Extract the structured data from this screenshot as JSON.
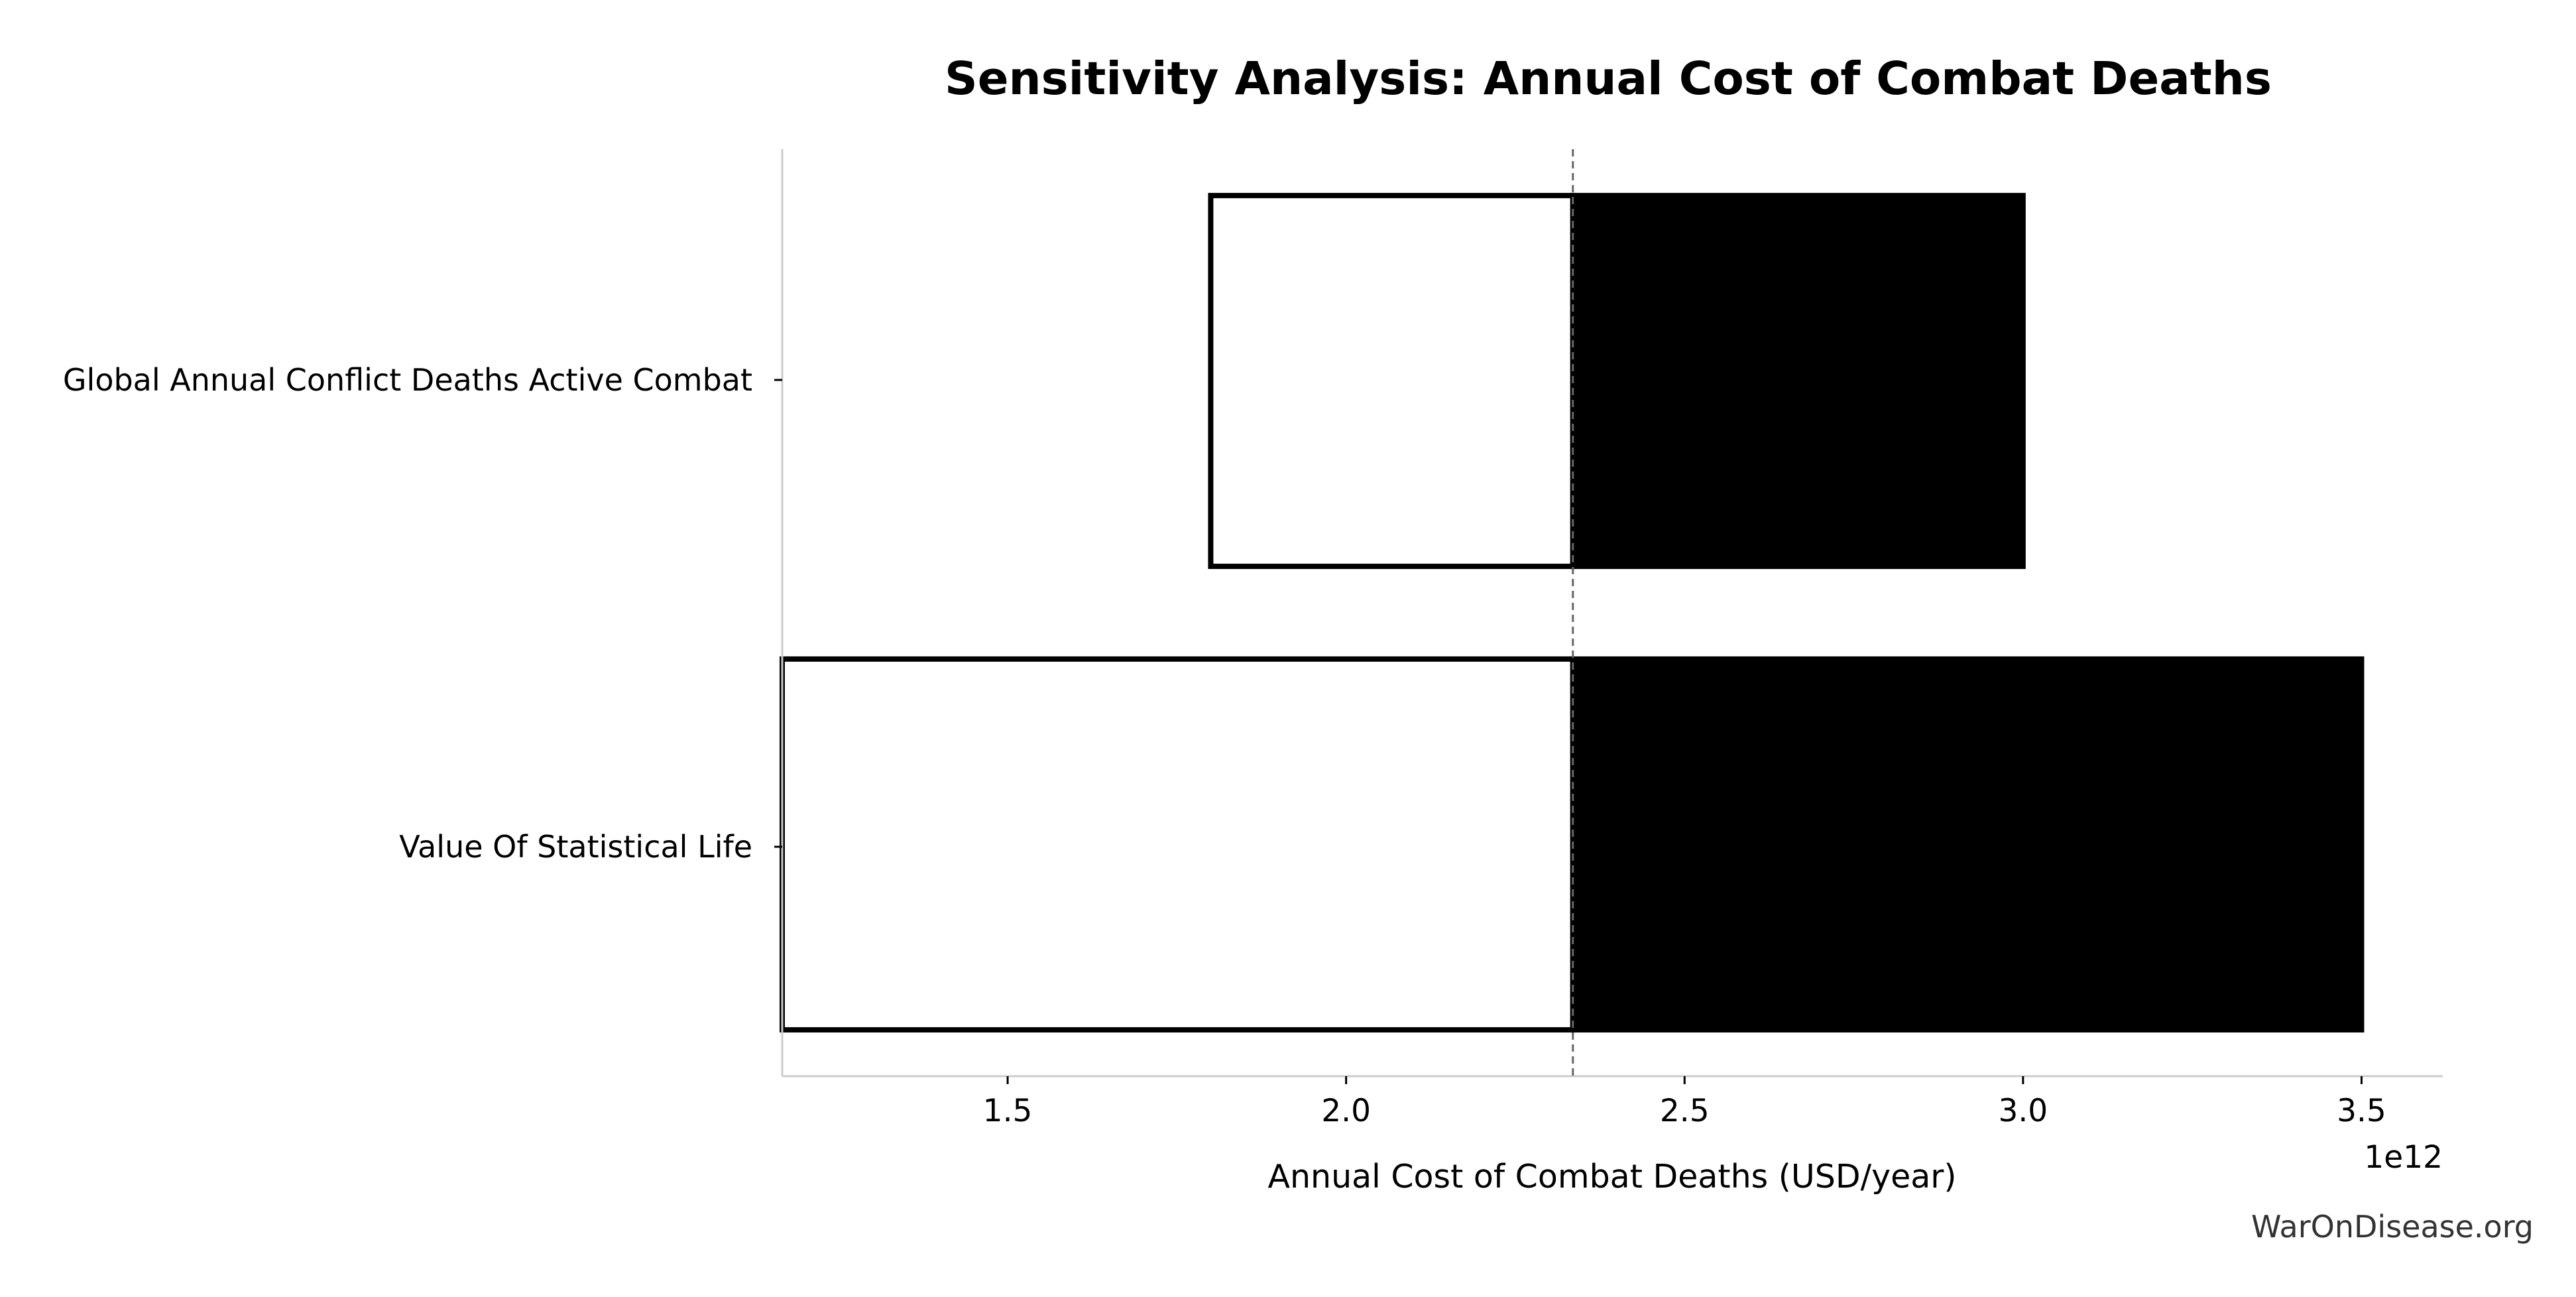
{
  "chart_data": {
    "type": "bar",
    "orientation": "horizontal",
    "title": "Sensitivity Analysis: Annual Cost of Combat Deaths",
    "xlabel": "Annual Cost of Combat Deaths (USD/year)",
    "x_offset_label": "1e12",
    "x_scale": 1000000000000.0,
    "xlim": [
      1.167,
      3.62
    ],
    "baseline": 2.335,
    "xticks": [
      {
        "value": 1.5,
        "label": "1.5"
      },
      {
        "value": 2.0,
        "label": "2.0"
      },
      {
        "value": 2.5,
        "label": "2.5"
      },
      {
        "value": 3.0,
        "label": "3.0"
      },
      {
        "value": 3.5,
        "label": "3.5"
      }
    ],
    "categories": [
      "Global Annual Conflict Deaths Active Combat",
      "Value Of Statistical Life"
    ],
    "series": [
      {
        "values": [
          1.8,
          1.167
        ],
        "fill": "#ffffff",
        "stroke": "#000000"
      },
      {
        "values": [
          3.0,
          3.5
        ],
        "fill": "#000000",
        "stroke": "#000000"
      }
    ]
  },
  "footer": {
    "watermark": "WarOnDisease.org"
  }
}
